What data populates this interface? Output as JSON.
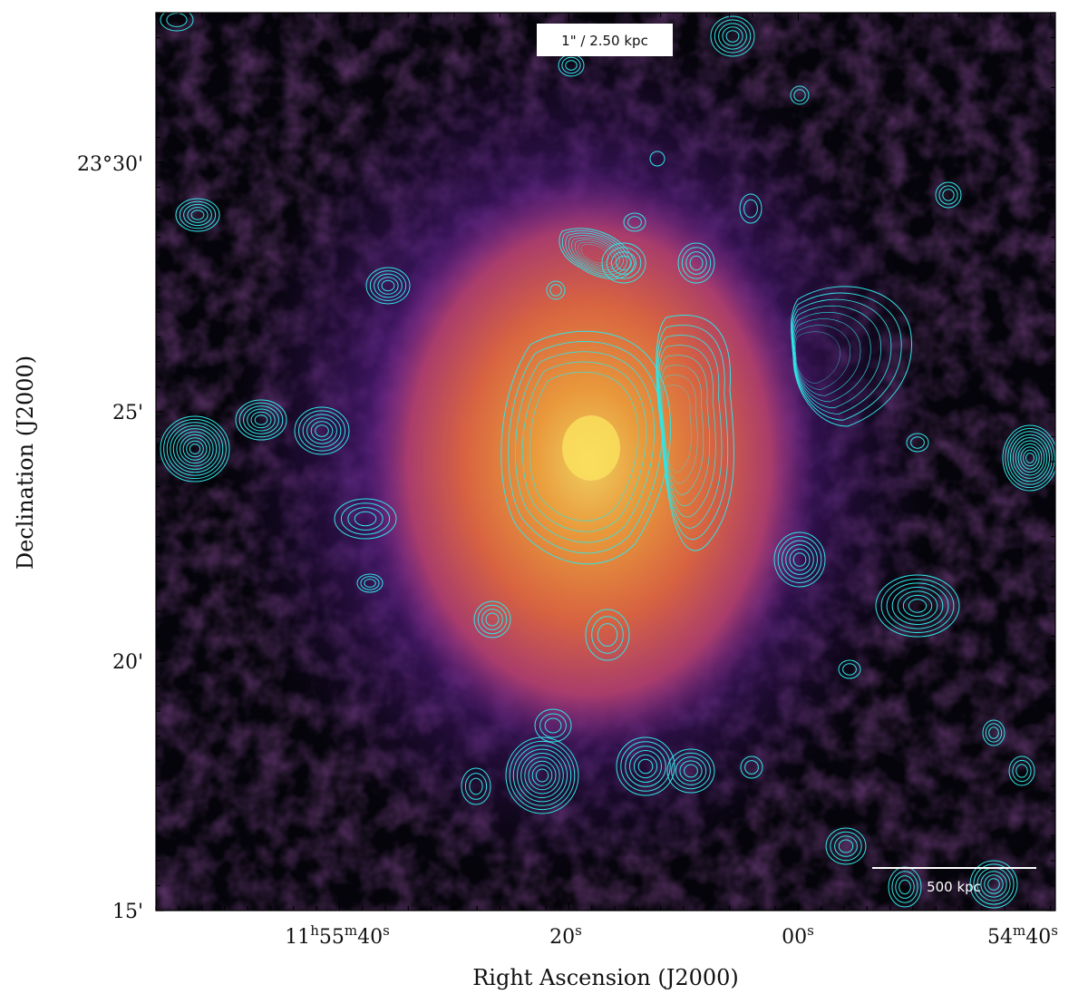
{
  "figure": {
    "x_axis_label": "Right Ascension (J2000)",
    "y_axis_label": "Declination (J2000)",
    "x_ticks": [
      {
        "label": "11h55m40s",
        "parts": [
          "11",
          "h",
          "55",
          "m",
          "40",
          "s"
        ]
      },
      {
        "label": "20s",
        "parts": [
          "20",
          "s"
        ]
      },
      {
        "label": "00s",
        "parts": [
          "00",
          "s"
        ]
      },
      {
        "label": "54m40s",
        "parts": [
          "54",
          "m",
          "40",
          "s"
        ]
      }
    ],
    "y_ticks": [
      "23°30'",
      "25'",
      "20'",
      "15'"
    ],
    "scale_text": "1\" / 2.50 kpc",
    "scalebar_label": "500 kpc",
    "colors": {
      "contour": "#2fe6e6",
      "background": "#05040a",
      "halo_purple": "#5a1f8a",
      "core_orange": "#f08a2a",
      "core_yellow": "#f8d44a"
    }
  }
}
